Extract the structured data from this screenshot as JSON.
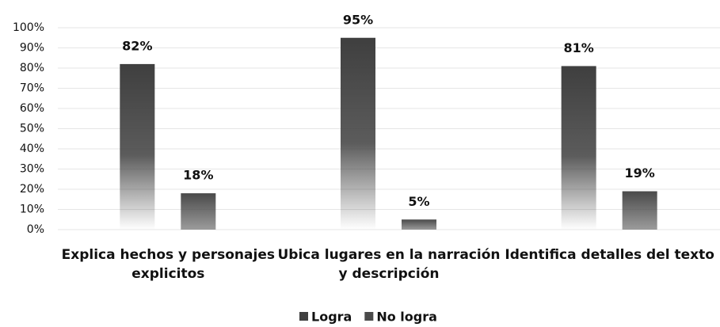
{
  "chart_data": {
    "type": "bar",
    "categories": [
      "Explica hechos y personajes explicitos",
      "Ubica lugares en la narración y descripción",
      "Identifica detalles del texto"
    ],
    "series": [
      {
        "name": "Logra",
        "color": "#3f3f3f",
        "values": [
          82,
          95,
          81
        ],
        "value_labels": [
          "82%",
          "95%",
          "81%"
        ]
      },
      {
        "name": "No logra",
        "color": "#4a4a4a",
        "values": [
          18,
          5,
          19
        ],
        "value_labels": [
          "18%",
          "5%",
          "19%"
        ]
      }
    ],
    "ylim": [
      0,
      100
    ],
    "yticks": [
      {
        "value": 0,
        "label": "0%"
      },
      {
        "value": 10,
        "label": "10%"
      },
      {
        "value": 20,
        "label": "20%"
      },
      {
        "value": 30,
        "label": "30%"
      },
      {
        "value": 40,
        "label": "40%"
      },
      {
        "value": 50,
        "label": "50%"
      },
      {
        "value": 60,
        "label": "60%"
      },
      {
        "value": 70,
        "label": "70%"
      },
      {
        "value": 80,
        "label": "80%"
      },
      {
        "value": 90,
        "label": "90%"
      },
      {
        "value": 100,
        "label": "100%"
      }
    ],
    "grid": true,
    "legend": "bottom"
  }
}
